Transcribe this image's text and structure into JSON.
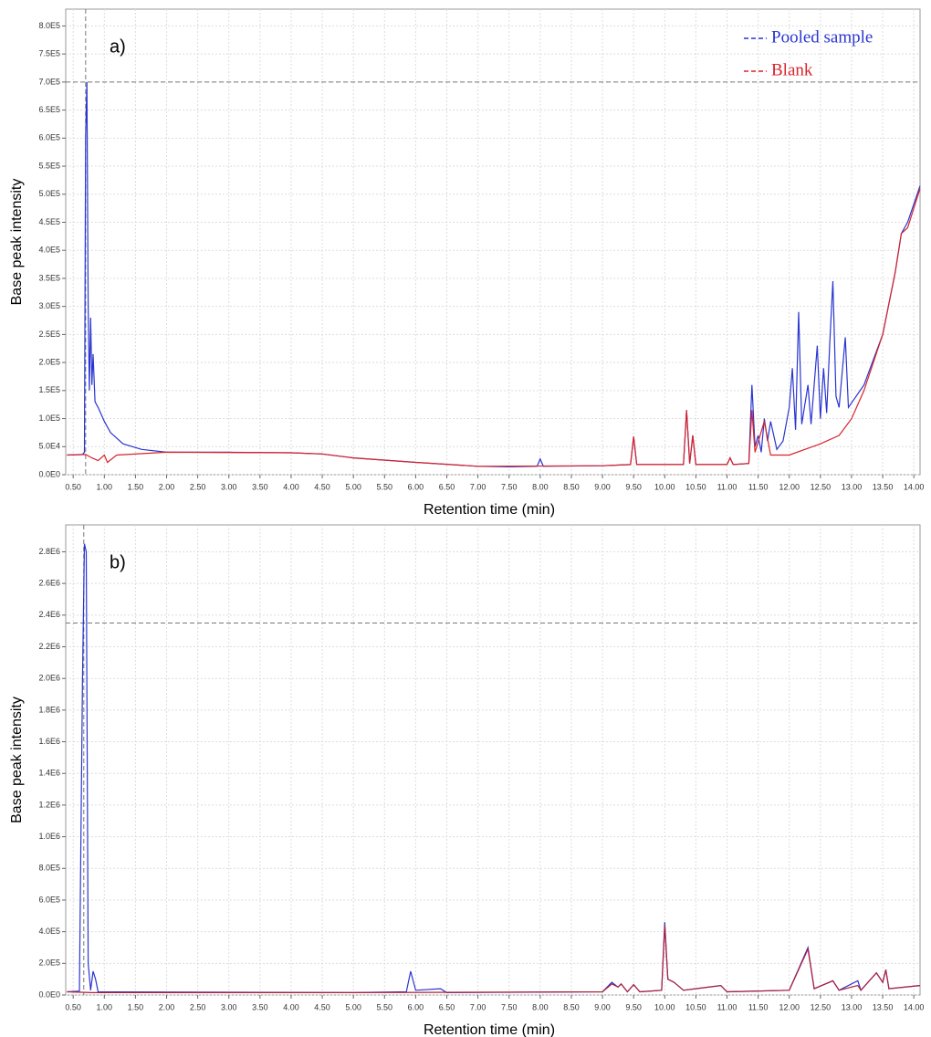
{
  "chart_data": [
    {
      "type": "line",
      "annotation": "a)",
      "x_label": "Retention time (min)",
      "y_label": "Base peak intensity",
      "xlim": [
        0.38,
        14.1
      ],
      "ylim": [
        0,
        830000
      ],
      "grid": true,
      "legend": "upper right",
      "hlines": [
        700000
      ],
      "vlines": [
        0.7
      ],
      "xticks": [
        {
          "value": 0.5,
          "label": "0.50"
        },
        {
          "value": 1,
          "label": "1.00"
        },
        {
          "value": 1.5,
          "label": "1.50"
        },
        {
          "value": 2,
          "label": "2.00"
        },
        {
          "value": 2.5,
          "label": "2.50"
        },
        {
          "value": 3,
          "label": "3.00"
        },
        {
          "value": 3.5,
          "label": "3.50"
        },
        {
          "value": 4,
          "label": "4.00"
        },
        {
          "value": 4.5,
          "label": "4.50"
        },
        {
          "value": 5,
          "label": "5.00"
        },
        {
          "value": 5.5,
          "label": "5.50"
        },
        {
          "value": 6,
          "label": "6.00"
        },
        {
          "value": 6.5,
          "label": "6.50"
        },
        {
          "value": 7,
          "label": "7.00"
        },
        {
          "value": 7.5,
          "label": "7.50"
        },
        {
          "value": 8,
          "label": "8.00"
        },
        {
          "value": 8.5,
          "label": "8.50"
        },
        {
          "value": 9,
          "label": "9.00"
        },
        {
          "value": 9.5,
          "label": "9.50"
        },
        {
          "value": 10,
          "label": "10.00"
        },
        {
          "value": 10.5,
          "label": "10.50"
        },
        {
          "value": 11,
          "label": "11.00"
        },
        {
          "value": 11.5,
          "label": "11.50"
        },
        {
          "value": 12,
          "label": "12.00"
        },
        {
          "value": 12.5,
          "label": "12.50"
        },
        {
          "value": 13,
          "label": "13.00"
        },
        {
          "value": 13.5,
          "label": "13.50"
        },
        {
          "value": 14,
          "label": "14.00"
        }
      ],
      "yticks": [
        {
          "value": 0,
          "label": "0.0E0"
        },
        {
          "value": 50000,
          "label": "5.0E4"
        },
        {
          "value": 100000,
          "label": "1.0E5"
        },
        {
          "value": 150000,
          "label": "1.5E5"
        },
        {
          "value": 200000,
          "label": "2.0E5"
        },
        {
          "value": 250000,
          "label": "2.5E5"
        },
        {
          "value": 300000,
          "label": "3.0E5"
        },
        {
          "value": 350000,
          "label": "3.5E5"
        },
        {
          "value": 400000,
          "label": "4.0E5"
        },
        {
          "value": 450000,
          "label": "4.5E5"
        },
        {
          "value": 500000,
          "label": "5.0E5"
        },
        {
          "value": 550000,
          "label": "5.5E5"
        },
        {
          "value": 600000,
          "label": "6.0E5"
        },
        {
          "value": 650000,
          "label": "6.5E5"
        },
        {
          "value": 700000,
          "label": "7.0E5"
        },
        {
          "value": 750000,
          "label": "7.5E5"
        },
        {
          "value": 800000,
          "label": "8.0E5"
        }
      ],
      "series": [
        {
          "name": "Pooled sample",
          "color": "#2a35d0",
          "x": [
            0.4,
            0.65,
            0.68,
            0.7,
            0.72,
            0.74,
            0.76,
            0.78,
            0.8,
            0.82,
            0.85,
            0.9,
            1.0,
            1.1,
            1.3,
            1.6,
            2.0,
            3.0,
            4.0,
            4.5,
            5.0,
            6.0,
            7.0,
            7.5,
            7.95,
            8.0,
            8.05,
            9.0,
            9.45,
            9.5,
            9.55,
            10.3,
            10.35,
            10.4,
            10.45,
            10.5,
            11.0,
            11.05,
            11.1,
            11.35,
            11.4,
            11.45,
            11.5,
            11.55,
            11.6,
            11.65,
            11.7,
            11.8,
            11.9,
            12.0,
            12.05,
            12.1,
            12.15,
            12.2,
            12.3,
            12.35,
            12.45,
            12.5,
            12.55,
            12.6,
            12.65,
            12.7,
            12.75,
            12.8,
            12.9,
            12.95,
            13.2,
            13.5,
            13.7,
            13.8,
            13.9,
            14.1
          ],
          "values": [
            35000,
            36000,
            40000,
            600000,
            700000,
            300000,
            150000,
            280000,
            160000,
            215000,
            130000,
            120000,
            95000,
            75000,
            55000,
            45000,
            40000,
            40000,
            39000,
            37000,
            30000,
            22000,
            15000,
            14000,
            15000,
            28000,
            15000,
            16000,
            18000,
            68000,
            18000,
            18000,
            115000,
            20000,
            70000,
            18000,
            18000,
            30000,
            18000,
            20000,
            160000,
            50000,
            70000,
            40000,
            100000,
            60000,
            95000,
            45000,
            60000,
            120000,
            190000,
            80000,
            290000,
            90000,
            160000,
            90000,
            230000,
            100000,
            190000,
            110000,
            235000,
            345000,
            140000,
            120000,
            245000,
            120000,
            160000,
            250000,
            360000,
            430000,
            450000,
            515000
          ]
        },
        {
          "name": "Blank",
          "color": "#d8232a",
          "x": [
            0.4,
            0.7,
            0.8,
            0.9,
            1.0,
            1.05,
            1.2,
            2.0,
            4.0,
            4.5,
            5.0,
            6.0,
            7.0,
            9.0,
            9.45,
            9.5,
            9.55,
            10.3,
            10.35,
            10.4,
            10.45,
            10.5,
            11.0,
            11.05,
            11.1,
            11.35,
            11.4,
            11.45,
            11.6,
            11.7,
            12.0,
            12.5,
            12.8,
            13.0,
            13.2,
            13.5,
            13.7,
            13.8,
            13.9,
            14.1
          ],
          "values": [
            35000,
            36000,
            30000,
            25000,
            35000,
            22000,
            35000,
            40000,
            39000,
            37000,
            30000,
            22000,
            15000,
            16000,
            18000,
            68000,
            18000,
            18000,
            115000,
            20000,
            70000,
            18000,
            18000,
            30000,
            18000,
            20000,
            115000,
            40000,
            95000,
            35000,
            35000,
            55000,
            70000,
            100000,
            150000,
            250000,
            360000,
            430000,
            440000,
            510000
          ]
        }
      ]
    },
    {
      "type": "line",
      "annotation": "b)",
      "x_label": "Retention time (min)",
      "y_label": "Base peak intensity",
      "xlim": [
        0.38,
        14.1
      ],
      "ylim": [
        0,
        2970000
      ],
      "grid": true,
      "hlines": [
        2350000
      ],
      "vlines": [
        0.67
      ],
      "xticks": [
        {
          "value": 0.5,
          "label": "0.50"
        },
        {
          "value": 1,
          "label": "1.00"
        },
        {
          "value": 1.5,
          "label": "1.50"
        },
        {
          "value": 2,
          "label": "2.00"
        },
        {
          "value": 2.5,
          "label": "2.50"
        },
        {
          "value": 3,
          "label": "3.00"
        },
        {
          "value": 3.5,
          "label": "3.50"
        },
        {
          "value": 4,
          "label": "4.00"
        },
        {
          "value": 4.5,
          "label": "4.50"
        },
        {
          "value": 5,
          "label": "5.00"
        },
        {
          "value": 5.5,
          "label": "5.50"
        },
        {
          "value": 6,
          "label": "6.00"
        },
        {
          "value": 6.5,
          "label": "6.50"
        },
        {
          "value": 7,
          "label": "7.00"
        },
        {
          "value": 7.5,
          "label": "7.50"
        },
        {
          "value": 8,
          "label": "8.00"
        },
        {
          "value": 8.5,
          "label": "8.50"
        },
        {
          "value": 9,
          "label": "9.00"
        },
        {
          "value": 9.5,
          "label": "9.50"
        },
        {
          "value": 10,
          "label": "10.00"
        },
        {
          "value": 10.5,
          "label": "10.50"
        },
        {
          "value": 11,
          "label": "11.00"
        },
        {
          "value": 11.5,
          "label": "11.50"
        },
        {
          "value": 12,
          "label": "12.00"
        },
        {
          "value": 12.5,
          "label": "12.50"
        },
        {
          "value": 13,
          "label": "13.00"
        },
        {
          "value": 13.5,
          "label": "13.50"
        },
        {
          "value": 14,
          "label": "14.00"
        }
      ],
      "yticks": [
        {
          "value": 0,
          "label": "0.0E0"
        },
        {
          "value": 200000,
          "label": "2.0E5"
        },
        {
          "value": 400000,
          "label": "4.0E5"
        },
        {
          "value": 600000,
          "label": "6.0E5"
        },
        {
          "value": 800000,
          "label": "8.0E5"
        },
        {
          "value": 1000000,
          "label": "1.0E6"
        },
        {
          "value": 1200000,
          "label": "1.2E6"
        },
        {
          "value": 1400000,
          "label": "1.4E6"
        },
        {
          "value": 1600000,
          "label": "1.6E6"
        },
        {
          "value": 1800000,
          "label": "1.8E6"
        },
        {
          "value": 2000000,
          "label": "2.0E6"
        },
        {
          "value": 2200000,
          "label": "2.2E6"
        },
        {
          "value": 2400000,
          "label": "2.4E6"
        },
        {
          "value": 2600000,
          "label": "2.6E6"
        },
        {
          "value": 2800000,
          "label": "2.8E6"
        }
      ],
      "series": [
        {
          "color": "#2a35d0",
          "x": [
            0.4,
            0.6,
            0.65,
            0.68,
            0.71,
            0.74,
            0.78,
            0.82,
            0.86,
            0.9,
            5.0,
            5.85,
            5.92,
            6.0,
            6.4,
            6.5,
            9.0,
            9.15,
            9.25,
            9.3,
            9.4,
            9.5,
            9.6,
            9.95,
            10.0,
            10.05,
            10.15,
            10.3,
            10.9,
            11.0,
            12.0,
            12.3,
            12.4,
            12.7,
            12.8,
            13.1,
            13.15,
            13.4,
            13.5,
            13.55,
            13.6,
            14.1
          ],
          "values": [
            20000,
            25000,
            2000000,
            2850000,
            2800000,
            200000,
            30000,
            150000,
            100000,
            20000,
            15000,
            20000,
            150000,
            30000,
            40000,
            15000,
            20000,
            80000,
            50000,
            70000,
            20000,
            65000,
            20000,
            30000,
            460000,
            100000,
            80000,
            30000,
            60000,
            20000,
            30000,
            300000,
            40000,
            90000,
            30000,
            90000,
            30000,
            140000,
            80000,
            160000,
            40000,
            60000
          ]
        },
        {
          "color": "#b0203a",
          "x": [
            0.4,
            0.8,
            5.0,
            9.0,
            9.15,
            9.25,
            9.3,
            9.4,
            9.5,
            9.6,
            9.95,
            10.0,
            10.05,
            10.15,
            10.3,
            10.9,
            11.0,
            12.0,
            12.3,
            12.4,
            12.7,
            12.8,
            13.1,
            13.15,
            13.4,
            13.5,
            13.55,
            13.6,
            14.1
          ],
          "values": [
            20000,
            15000,
            15000,
            20000,
            70000,
            50000,
            70000,
            20000,
            65000,
            20000,
            30000,
            440000,
            100000,
            80000,
            30000,
            60000,
            20000,
            30000,
            290000,
            40000,
            90000,
            30000,
            60000,
            30000,
            140000,
            80000,
            160000,
            40000,
            60000
          ]
        }
      ]
    }
  ]
}
